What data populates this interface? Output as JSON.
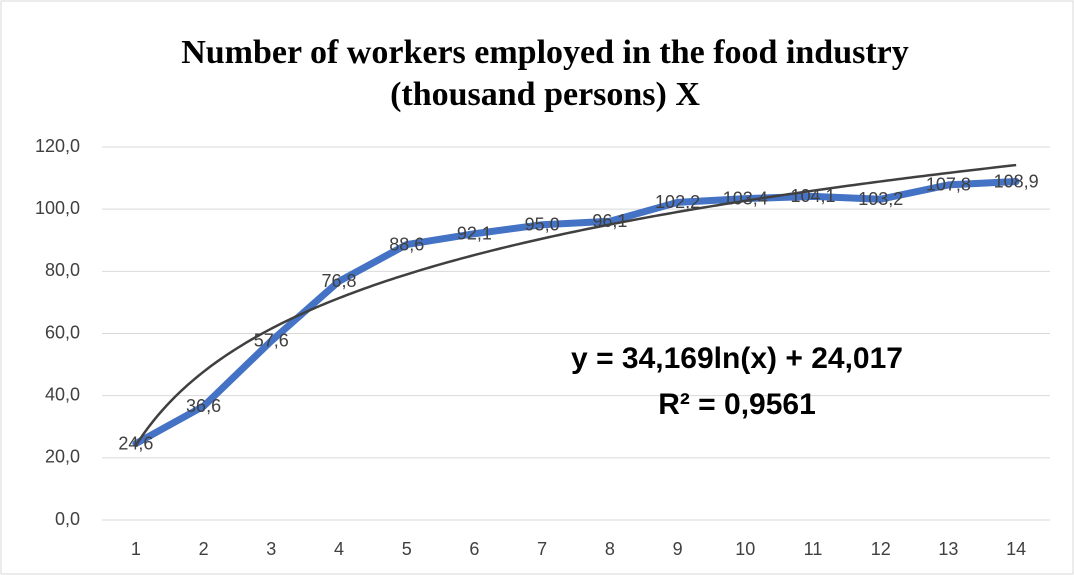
{
  "chart_data": {
    "type": "line",
    "title": [
      "Number of workers employed in the food industry",
      "(thousand persons) X"
    ],
    "categories": [
      "1",
      "2",
      "3",
      "4",
      "5",
      "6",
      "7",
      "8",
      "9",
      "10",
      "11",
      "12",
      "13",
      "14"
    ],
    "series": [
      {
        "name": "X",
        "color": "#4472c4",
        "values": [
          24.6,
          36.6,
          57.6,
          76.8,
          88.6,
          92.1,
          95.0,
          96.1,
          102.2,
          103.4,
          104.1,
          103.2,
          107.8,
          108.9
        ],
        "value_labels": [
          "24,6",
          "36,6",
          "57,6",
          "76,8",
          "88,6",
          "92,1",
          "95,0",
          "96,1",
          "102,2",
          "103,4",
          "104,1",
          "103,2",
          "107,8",
          "108,9"
        ]
      }
    ],
    "trendline": {
      "type": "log",
      "color": "#404040",
      "coefficients": [
        34.169,
        24.017
      ],
      "equation": "y = 34,169ln(x) + 24,017",
      "r2_label": "R² = 0,9561"
    },
    "ylim": [
      0,
      120
    ],
    "yticks": [
      {
        "value": 0,
        "label": "0,0"
      },
      {
        "value": 20,
        "label": "20,0"
      },
      {
        "value": 40,
        "label": "40,0"
      },
      {
        "value": 60,
        "label": "60,0"
      },
      {
        "value": 80,
        "label": "80,0"
      },
      {
        "value": 100,
        "label": "100,0"
      },
      {
        "value": 120,
        "label": "120,0"
      }
    ],
    "grid": true
  }
}
